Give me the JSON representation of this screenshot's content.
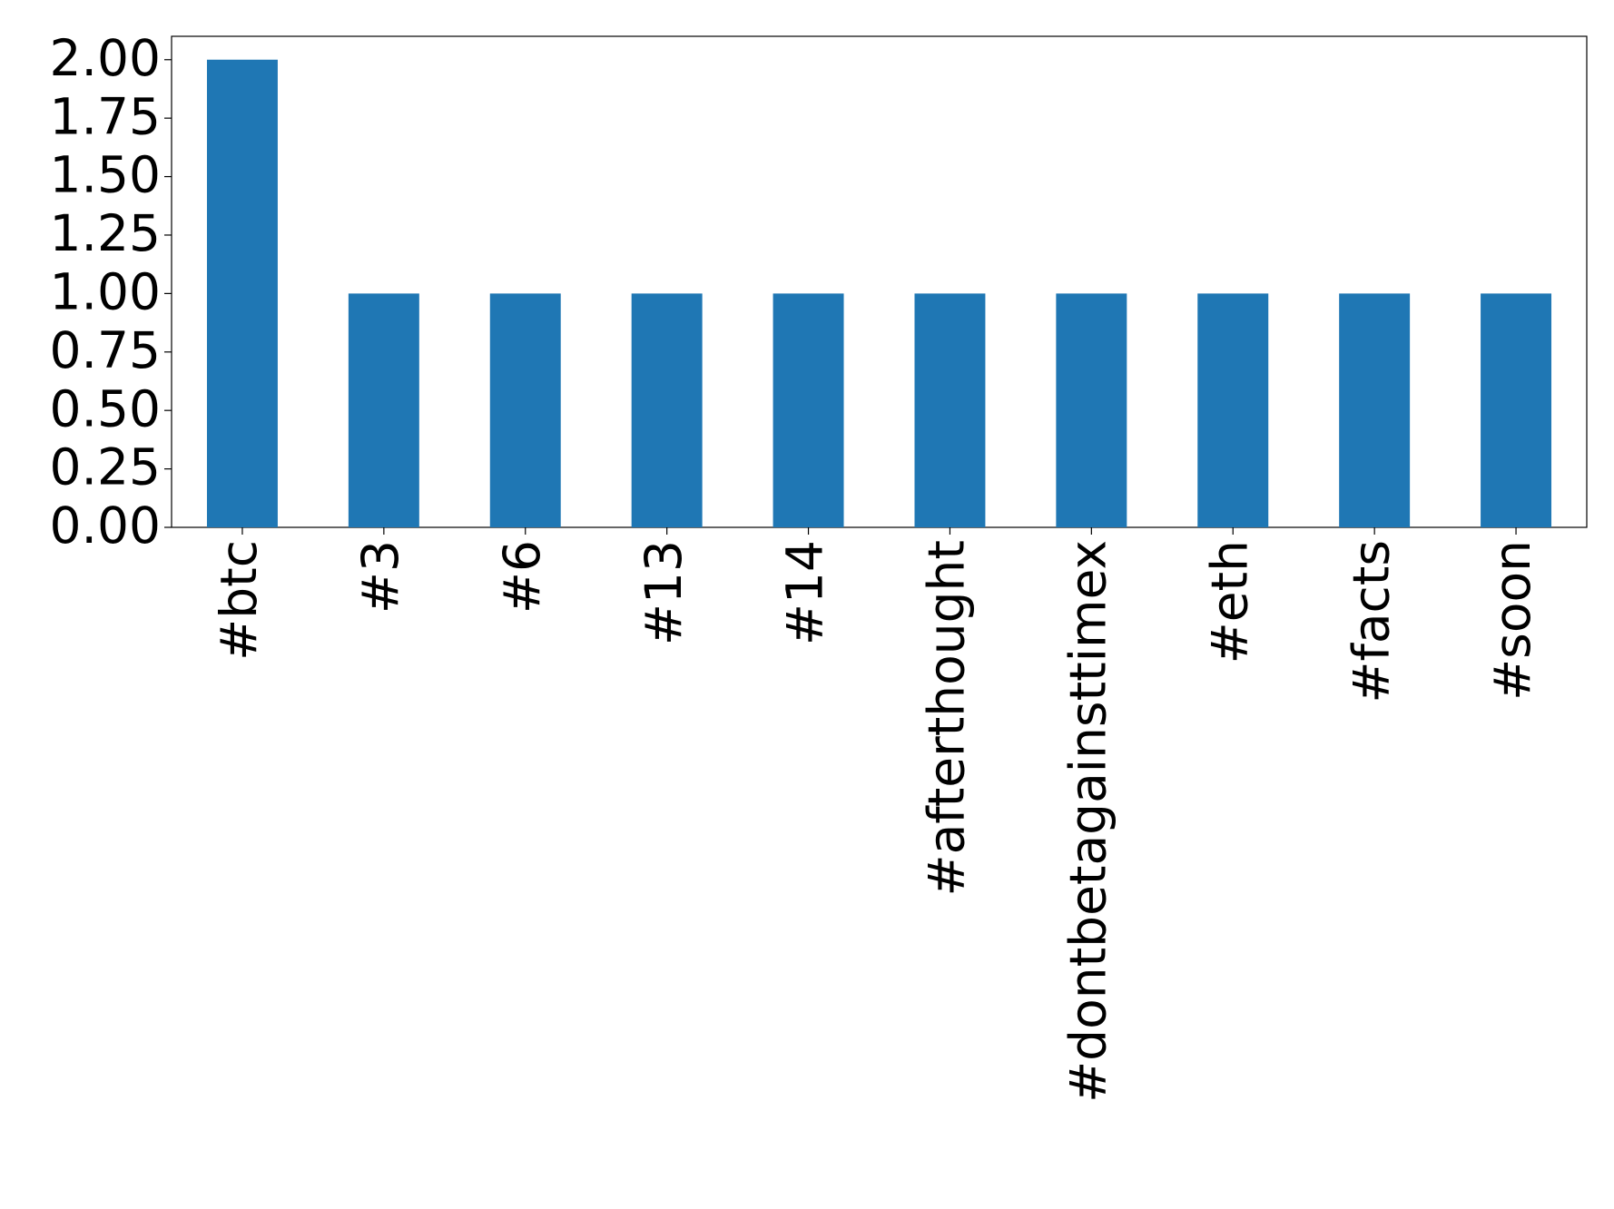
{
  "chart_data": {
    "type": "bar",
    "categories": [
      "#btc",
      "#3",
      "#6",
      "#13",
      "#14",
      "#afterthought",
      "#dontbetagainsttimex",
      "#eth",
      "#facts",
      "#soon"
    ],
    "values": [
      2,
      1,
      1,
      1,
      1,
      1,
      1,
      1,
      1,
      1
    ],
    "color": "#1f77b4",
    "ylim": [
      0,
      2.1
    ],
    "yticks": [
      {
        "value": 0,
        "label": "0.00"
      },
      {
        "value": 0.25,
        "label": "0.25"
      },
      {
        "value": 0.5,
        "label": "0.50"
      },
      {
        "value": 0.75,
        "label": "0.75"
      },
      {
        "value": 1,
        "label": "1.00"
      },
      {
        "value": 1.25,
        "label": "1.25"
      },
      {
        "value": 1.5,
        "label": "1.50"
      },
      {
        "value": 1.75,
        "label": "1.75"
      },
      {
        "value": 2,
        "label": "2.00"
      }
    ],
    "grid": false
  }
}
